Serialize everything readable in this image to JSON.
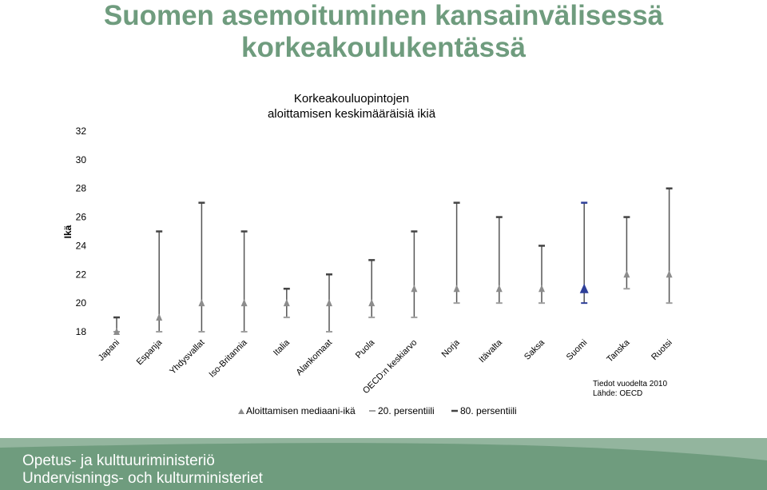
{
  "slide": {
    "title_line1": "Suomen asemoituminen kansainvälisessä",
    "title_line2": "korkeakoulukentässä",
    "source_line1": "Tiedot vuodelta 2010",
    "source_line2": "Lähde: OECD"
  },
  "footer": {
    "ministry_fi": "Opetus- ja kulttuuriministeriö",
    "ministry_sv": "Undervisnings- och kulturministeriet",
    "band_color": "#6f9c7e"
  },
  "colors": {
    "title": "#6f9c7e",
    "median_marker": "#8c8c8c",
    "highlight_marker": "#2e3f99",
    "whisker": "#555555"
  },
  "chart_data": {
    "type": "scatter",
    "title_line1": "Korkeakouluopintojen",
    "title_line2": "aloittamisen keskimääräisiä ikiä",
    "ylabel": "Ikä",
    "xlabel": "",
    "ylim": [
      18,
      32
    ],
    "yticks": [
      18,
      20,
      22,
      24,
      26,
      28,
      30,
      32
    ],
    "grid": false,
    "legend_position": "bottom",
    "categories": [
      "Japani",
      "Espanja",
      "Yhdysvallat",
      "Iso-Britannia",
      "Italia",
      "Alankomaat",
      "Puola",
      "OECD:n keskiarvo",
      "Norja",
      "Itävalta",
      "Saksa",
      "Suomi",
      "Tanska",
      "Ruotsi"
    ],
    "highlight": "Suomi",
    "series": [
      {
        "name": "Aloittamisen mediaani-ikä",
        "marker": "triangle",
        "values": [
          18,
          19,
          20,
          20,
          20,
          20,
          20,
          21,
          21,
          21,
          21,
          21,
          22,
          22
        ]
      },
      {
        "name": "20. persentiili",
        "marker": "dash",
        "values": [
          18,
          18,
          18,
          18,
          19,
          18,
          19,
          19,
          20,
          20,
          20,
          20,
          21,
          20
        ]
      },
      {
        "name": "80. persentiili",
        "marker": "dash",
        "values": [
          19,
          25,
          27,
          25,
          21,
          22,
          23,
          25,
          27,
          26,
          24,
          27,
          26,
          28
        ]
      }
    ]
  }
}
